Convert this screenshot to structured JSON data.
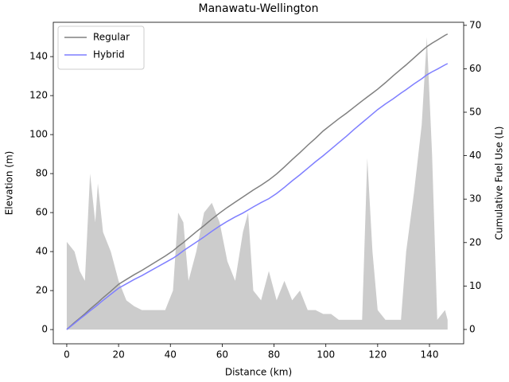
{
  "chart_data": {
    "type": "line",
    "title": "Manawatu-Wellington",
    "xlabel": "Distance (km)",
    "ylabel": "Elevation (m)",
    "y2label": "Cumulative Fuel Use (L)",
    "x": [
      0,
      3,
      5,
      7,
      9,
      11,
      12,
      14,
      17,
      20,
      23,
      26,
      29,
      32,
      35,
      38,
      41,
      43,
      45,
      47,
      50,
      53,
      56,
      59,
      62,
      65,
      68,
      70,
      72,
      75,
      78,
      81,
      84,
      87,
      90,
      93,
      96,
      99,
      102,
      105,
      108,
      111,
      114,
      116,
      118,
      120,
      123,
      126,
      129,
      131,
      134,
      137,
      139,
      141,
      143,
      146,
      147
    ],
    "series": [
      {
        "type": "area",
        "axis": "y",
        "color": "#cccccc",
        "values": [
          45,
          40,
          30,
          25,
          80,
          55,
          75,
          50,
          40,
          25,
          15,
          12,
          10,
          10,
          10,
          10,
          20,
          60,
          55,
          25,
          40,
          60,
          65,
          55,
          35,
          25,
          50,
          60,
          20,
          15,
          30,
          15,
          25,
          15,
          20,
          10,
          10,
          8,
          8,
          5,
          5,
          5,
          5,
          88,
          40,
          10,
          5,
          5,
          5,
          40,
          70,
          105,
          150,
          90,
          5,
          10,
          5
        ]
      },
      {
        "name": "Regular",
        "axis": "y2",
        "color": "#808080",
        "values": [
          0,
          1.6,
          2.6,
          3.6,
          4.7,
          5.7,
          6.2,
          7.3,
          8.8,
          10.4,
          11.5,
          12.6,
          13.6,
          14.7,
          15.8,
          16.9,
          18.1,
          19.1,
          20.0,
          21.0,
          22.5,
          23.9,
          25.4,
          26.8,
          28.1,
          29.3,
          30.5,
          31.3,
          32.1,
          33.2,
          34.4,
          35.8,
          37.4,
          39.1,
          40.7,
          42.4,
          44.0,
          45.7,
          47.1,
          48.5,
          49.8,
          51.2,
          52.6,
          53.5,
          54.4,
          55.3,
          56.8,
          58.4,
          59.9,
          60.9,
          62.5,
          64.1,
          65.1,
          65.9,
          66.6,
          67.7,
          68
        ]
      },
      {
        "name": "Hybrid",
        "axis": "y2",
        "color": "#7f7fff",
        "values": [
          0,
          1.4,
          2.4,
          3.3,
          4.3,
          5.2,
          5.7,
          6.7,
          8.1,
          9.5,
          10.5,
          11.5,
          12.4,
          13.4,
          14.4,
          15.4,
          16.4,
          17.2,
          18.1,
          18.9,
          20.1,
          21.3,
          22.6,
          23.8,
          24.9,
          25.9,
          26.8,
          27.5,
          28.2,
          29.2,
          30.1,
          31.3,
          32.7,
          34.2,
          35.6,
          37.1,
          38.6,
          40.0,
          41.5,
          43.0,
          44.5,
          46.1,
          47.6,
          48.6,
          49.6,
          50.6,
          51.9,
          53.1,
          54.4,
          55.2,
          56.5,
          57.7,
          58.6,
          59.3,
          59.9,
          60.9,
          61.2
        ]
      }
    ],
    "xlim": [
      -5.2,
      153.2
    ],
    "xticks": [
      0,
      20,
      40,
      60,
      80,
      100,
      120,
      140
    ],
    "ylim": [
      -7.3,
      157.6
    ],
    "yticks": [
      0,
      20,
      40,
      60,
      80,
      100,
      120,
      140
    ],
    "y2lim": [
      -3.3,
      70.7
    ],
    "y2ticks": [
      0,
      10,
      20,
      30,
      40,
      50,
      60,
      70
    ],
    "legend": "upper left",
    "grid": false
  }
}
